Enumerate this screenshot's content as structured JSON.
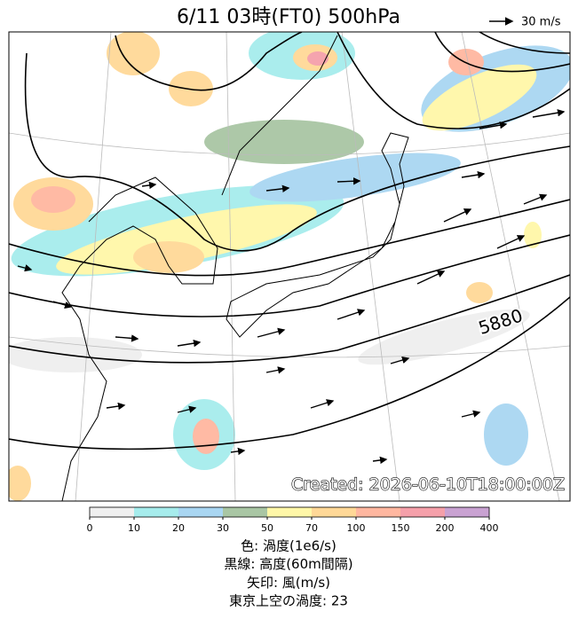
{
  "title": "6/11  03時(FT0)     500hPa",
  "wind_scale_label": "30 m/s",
  "contour_label": "5880",
  "created": "Created: 2026-06-10T18:00:00Z",
  "colorbar": {
    "ticks": [
      0,
      10,
      20,
      30,
      50,
      70,
      100,
      150,
      200,
      400
    ],
    "colors": [
      "#efefef",
      "#a6ecec",
      "#a9d6f2",
      "#a9c6a4",
      "#fff7a8",
      "#ffd897",
      "#ffb7a0",
      "#f5a0aa",
      "#c9a2d2"
    ]
  },
  "caption": [
    "色: 渦度(1e6/s)",
    "黒線: 高度(60m間隔)",
    "矢印: 風(m/s)",
    "東京上空の渦度: 23"
  ]
}
